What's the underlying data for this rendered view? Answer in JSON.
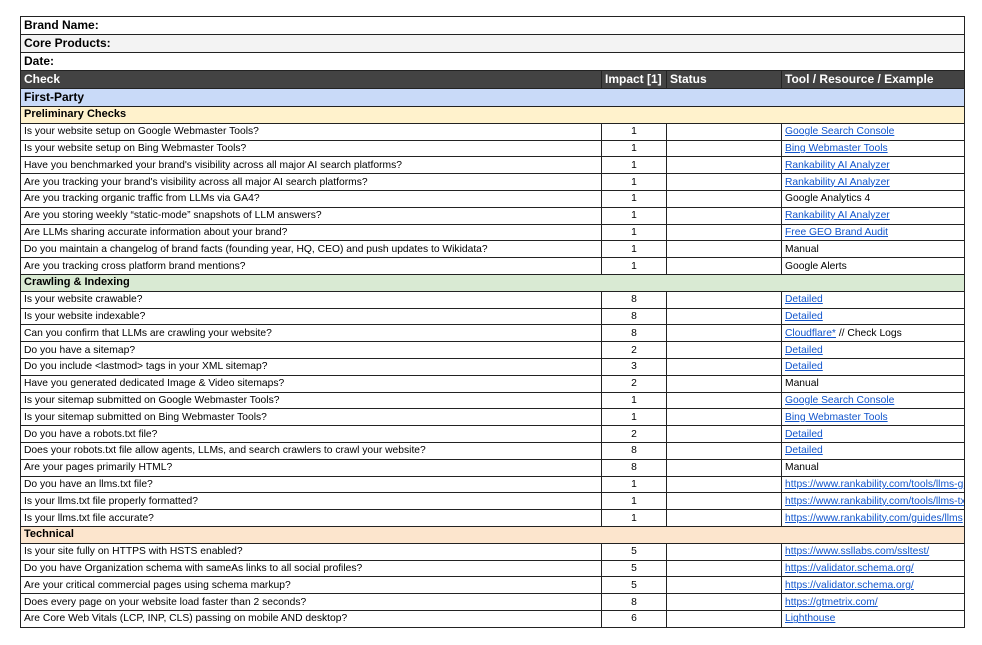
{
  "meta": {
    "brand_label": "Brand Name:",
    "products_label": "Core Products:",
    "date_label": "Date:"
  },
  "header": {
    "check": "Check",
    "impact": "Impact [1]",
    "status": "Status",
    "tool": "Tool / Resource / Example"
  },
  "category": "First-Party",
  "colors": {
    "header_bg": "#434343",
    "category_bg": "#c9daf8",
    "preliminary_bg": "#fff2cc",
    "crawling_bg": "#d9ead3",
    "technical_bg": "#fce5cd",
    "link": "#1155cc"
  },
  "sections": [
    {
      "title": "Preliminary Checks",
      "color": "#fff2cc",
      "rows": [
        {
          "check": "Is your website setup on Google Webmaster Tools?",
          "impact": "1",
          "tool": "Google Search Console",
          "link": true
        },
        {
          "check": "Is your website setup on Bing Webmaster Tools?",
          "impact": "1",
          "tool": "Bing Webmaster Tools",
          "link": true
        },
        {
          "check": "Have you benchmarked your brand's visibility across all major AI search platforms?",
          "impact": "1",
          "tool": "Rankability AI Analyzer",
          "link": true
        },
        {
          "check": "Are you tracking your brand's visibility across all major AI search platforms?",
          "impact": "1",
          "tool": "Rankability AI Analyzer",
          "link": true
        },
        {
          "check": "Are you tracking organic traffic from LLMs via GA4?",
          "impact": "1",
          "tool": "Google Analytics 4",
          "link": false
        },
        {
          "check": "Are you storing weekly “static-mode” snapshots of LLM answers?",
          "impact": "1",
          "tool": "Rankability AI Analyzer",
          "link": true
        },
        {
          "check": "Are LLMs sharing accurate information about your brand?",
          "impact": "1",
          "tool": "Free GEO Brand Audit",
          "link": true
        },
        {
          "check": "Do you maintain a changelog of brand facts (founding year, HQ, CEO) and push updates to Wikidata?",
          "impact": "1",
          "tool": "Manual",
          "link": false
        },
        {
          "check": "Are you tracking cross platform brand mentions?",
          "impact": "1",
          "tool": "Google Alerts",
          "link": false
        }
      ]
    },
    {
      "title": "Crawling & Indexing",
      "color": "#d9ead3",
      "rows": [
        {
          "check": "Is your website crawable?",
          "impact": "8",
          "tool": "Detailed",
          "link": true
        },
        {
          "check": "Is your website indexable?",
          "impact": "8",
          "tool": "Detailed",
          "link": true
        },
        {
          "check": "Can you confirm that LLMs are crawling your website?",
          "impact": "8",
          "tool": "Cloudflare*",
          "link": true,
          "suffix": " // Check Logs"
        },
        {
          "check": "Do you have a sitemap?",
          "impact": "2",
          "tool": "Detailed",
          "link": true
        },
        {
          "check": "Do you include <lastmod> tags in your XML sitemap?",
          "impact": "3",
          "tool": "Detailed",
          "link": true
        },
        {
          "check": "Have you generated dedicated Image & Video sitemaps?",
          "impact": "2",
          "tool": "Manual",
          "link": false
        },
        {
          "check": "Is your sitemap submitted on Google Webmaster Tools?",
          "impact": "1",
          "tool": "Google Search Console",
          "link": true
        },
        {
          "check": "Is your sitemap submitted on Bing Webmaster Tools?",
          "impact": "1",
          "tool": "Bing Webmaster Tools",
          "link": true
        },
        {
          "check": "Do you have a robots.txt file?",
          "impact": "2",
          "tool": "Detailed",
          "link": true
        },
        {
          "check": "Does your robots.txt file allow agents, LLMs, and search crawlers to crawl your website?",
          "impact": "8",
          "tool": "Detailed",
          "link": true
        },
        {
          "check": "Are your pages primarily HTML?",
          "impact": "8",
          "tool": "Manual",
          "link": false
        },
        {
          "check": "Do you have an llms.txt file?",
          "impact": "1",
          "tool": "https://www.rankability.com/tools/llms-g",
          "link": true
        },
        {
          "check": "Is your llms.txt file properly formatted?",
          "impact": "1",
          "tool": "https://www.rankability.com/tools/llms-tx",
          "link": true
        },
        {
          "check": "Is your llms.txt file accurate?",
          "impact": "1",
          "tool": "https://www.rankability.com/guides/llms",
          "link": true
        }
      ]
    },
    {
      "title": "Technical",
      "color": "#fce5cd",
      "rows": [
        {
          "check": "Is your site fully on HTTPS with HSTS enabled?",
          "impact": "5",
          "tool": "https://www.ssllabs.com/ssltest/",
          "link": true
        },
        {
          "check": "Do you have Organization schema with sameAs links to all social profiles?",
          "impact": "5",
          "tool": "https://validator.schema.org/",
          "link": true
        },
        {
          "check": "Are your critical commercial pages using schema markup?",
          "impact": "5",
          "tool": "https://validator.schema.org/",
          "link": true
        },
        {
          "check": "Does every page on your website load faster than 2 seconds?",
          "impact": "8",
          "tool": "https://gtmetrix.com/",
          "link": true
        },
        {
          "check": "Are Core Web Vitals (LCP, INP, CLS) passing on mobile AND desktop?",
          "impact": "6",
          "tool": "Lighthouse",
          "link": true
        }
      ]
    }
  ]
}
